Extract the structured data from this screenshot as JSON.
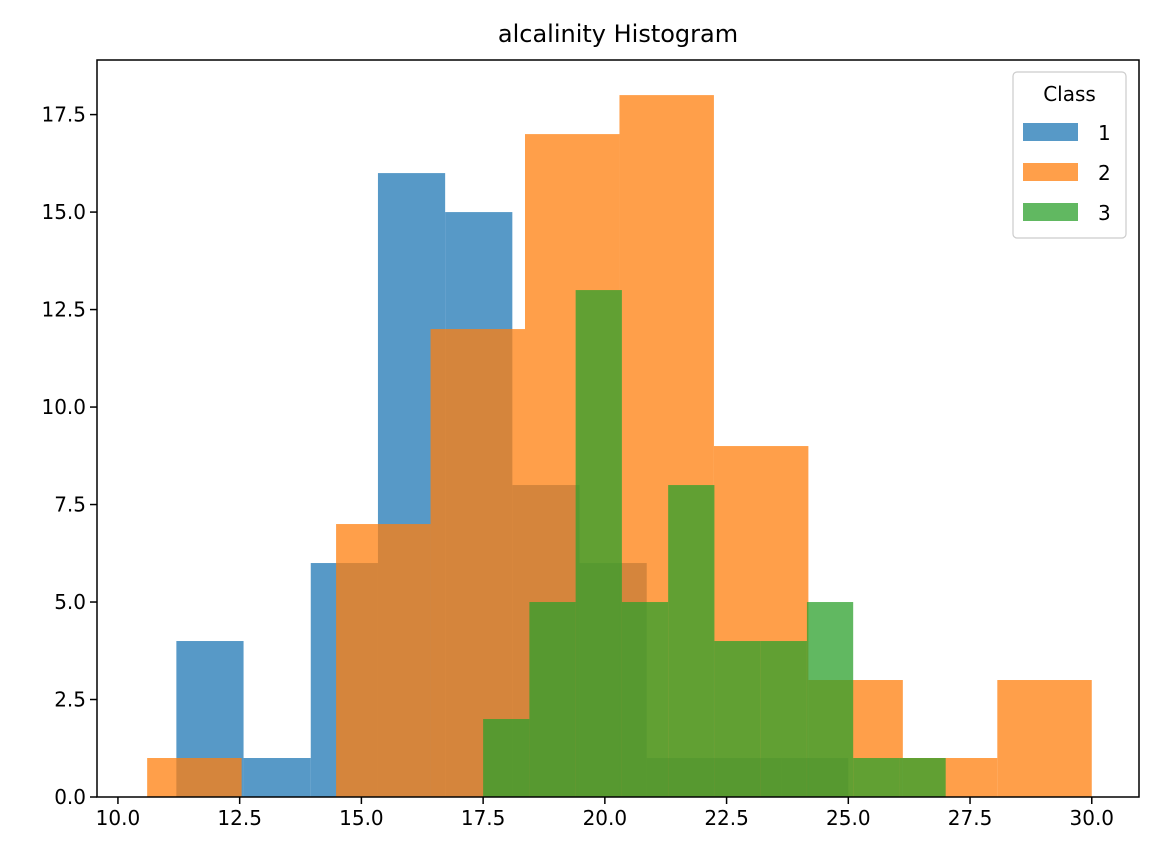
{
  "chart_data": {
    "type": "bar",
    "title": "alcalinity Histogram",
    "xlabel": "",
    "ylabel": "",
    "xlim": [
      9.57,
      30.97
    ],
    "ylim": [
      0,
      18.9
    ],
    "xticks": [
      10.0,
      12.5,
      15.0,
      17.5,
      20.0,
      22.5,
      25.0,
      27.5,
      30.0
    ],
    "xtick_labels": [
      "10.0",
      "12.5",
      "15.0",
      "17.5",
      "20.0",
      "22.5",
      "25.0",
      "27.5",
      "30.0"
    ],
    "yticks": [
      0.0,
      2.5,
      5.0,
      7.5,
      10.0,
      12.5,
      15.0,
      17.5
    ],
    "ytick_labels": [
      "0.0",
      "2.5",
      "5.0",
      "7.5",
      "10.0",
      "12.5",
      "15.0",
      "17.5"
    ],
    "grid": false,
    "legend": {
      "title": "Class",
      "placement": "top-right"
    },
    "opacity": 0.75,
    "series": [
      {
        "name": "1",
        "color": "#1f77b4",
        "bins": [
          11.2,
          12.58,
          13.96,
          15.34,
          16.72,
          18.1,
          19.48,
          20.86,
          22.24,
          23.62,
          25.0
        ],
        "counts": [
          4,
          1,
          6,
          16,
          15,
          8,
          6,
          1,
          1,
          1
        ]
      },
      {
        "name": "2",
        "color": "#ff7f0e",
        "bins": [
          10.6,
          12.54,
          14.48,
          16.42,
          18.36,
          20.3,
          22.24,
          24.18,
          26.12,
          28.06,
          30.0
        ],
        "counts": [
          1,
          0,
          7,
          12,
          17,
          18,
          9,
          3,
          1,
          3
        ]
      },
      {
        "name": "3",
        "color": "#2ca02c",
        "bins": [
          17.5,
          18.45,
          19.4,
          20.35,
          21.3,
          22.25,
          23.2,
          24.15,
          25.1,
          26.05,
          27.0
        ],
        "counts": [
          2,
          5,
          13,
          5,
          8,
          4,
          4,
          5,
          1,
          1
        ]
      }
    ]
  }
}
